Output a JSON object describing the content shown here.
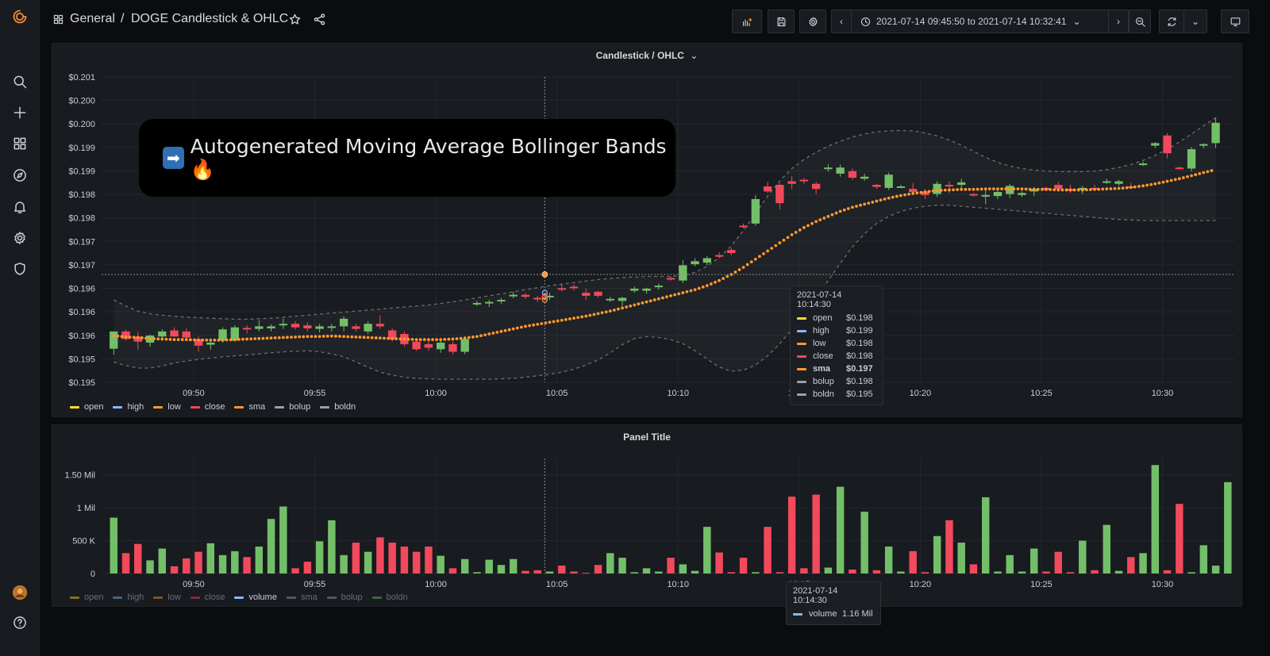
{
  "sidebar": {
    "items": [
      {
        "name": "grafana-logo-icon"
      },
      {
        "name": "search-icon"
      },
      {
        "name": "plus-icon"
      },
      {
        "name": "dashboards-icon"
      },
      {
        "name": "explore-compass-icon"
      },
      {
        "name": "alerting-bell-icon"
      },
      {
        "name": "configuration-gear-icon"
      },
      {
        "name": "server-admin-shield-icon"
      },
      {
        "name": "user-avatar-icon"
      },
      {
        "name": "help-icon"
      }
    ]
  },
  "header": {
    "folder": "General",
    "separator": "/",
    "dashboard_title": "DOGE Candlestick & OHLC",
    "time_range": "2021-07-14 09:45:50 to 2021-07-14 10:32:41"
  },
  "overlay": {
    "text": "Autogenerated Moving Average Bollinger Bands 🔥",
    "arrow": "➡"
  },
  "colors": {
    "up": "#73bf69",
    "down": "#f2495c",
    "sma": "#ff9830",
    "open": "#fade2a",
    "high": "#8ab8ff",
    "low": "#ff9830",
    "close": "#f2495c",
    "volume": "#8ab8ff",
    "bands": "#6e6e6e"
  },
  "panel1": {
    "title": "Candlestick / OHLC",
    "legend": [
      {
        "name": "open",
        "color": "#fade2a"
      },
      {
        "name": "high",
        "color": "#8ab8ff"
      },
      {
        "name": "low",
        "color": "#ff9830"
      },
      {
        "name": "close",
        "color": "#f2495c"
      },
      {
        "name": "sma",
        "color": "#ff9830"
      },
      {
        "name": "bolup",
        "color": "#9fa0a4"
      },
      {
        "name": "boldn",
        "color": "#9fa0a4"
      }
    ],
    "tooltip": {
      "time": "2021-07-14 10:14:30",
      "rows": [
        {
          "name": "open",
          "value": "$0.198",
          "color": "#fade2a",
          "bold": false
        },
        {
          "name": "high",
          "value": "$0.199",
          "color": "#8ab8ff",
          "bold": false
        },
        {
          "name": "low",
          "value": "$0.198",
          "color": "#ff9830",
          "bold": false
        },
        {
          "name": "close",
          "value": "$0.198",
          "color": "#f2495c",
          "bold": false
        },
        {
          "name": "sma",
          "value": "$0.197",
          "color": "#ff9830",
          "bold": true
        },
        {
          "name": "bolup",
          "value": "$0.198",
          "color": "#9fa0a4",
          "bold": false
        },
        {
          "name": "boldn",
          "value": "$0.195",
          "color": "#9fa0a4",
          "bold": false
        }
      ]
    }
  },
  "panel2": {
    "title": "Panel Title",
    "legend": [
      {
        "name": "open",
        "color": "#fade2a",
        "dim": true
      },
      {
        "name": "high",
        "color": "#8ab8ff",
        "dim": true
      },
      {
        "name": "low",
        "color": "#ff9830",
        "dim": true
      },
      {
        "name": "close",
        "color": "#f2495c",
        "dim": true
      },
      {
        "name": "volume",
        "color": "#8ab8ff",
        "dim": false
      },
      {
        "name": "sma",
        "color": "#9fa0a4",
        "dim": true
      },
      {
        "name": "bolup",
        "color": "#9fa0a4",
        "dim": true
      },
      {
        "name": "boldn",
        "color": "#73bf69",
        "dim": true
      }
    ],
    "tooltip": {
      "time": "2021-07-14 10:14:30",
      "rows": [
        {
          "name": "volume",
          "value": "1.16 Mil",
          "color": "#8ab8ff"
        }
      ]
    }
  },
  "chart_data": [
    {
      "type": "candlestick",
      "title": "Candlestick / OHLC",
      "y_tick_labels": [
        "$0.195",
        "$0.195",
        "$0.196",
        "$0.196",
        "$0.196",
        "$0.197",
        "$0.197",
        "$0.198",
        "$0.198",
        "$0.199",
        "$0.199",
        "$0.200",
        "$0.200",
        "$0.201"
      ],
      "x_tick_labels": [
        "09:50",
        "09:55",
        "10:00",
        "10:05",
        "10:10",
        "10:15",
        "10:20",
        "10:25",
        "10:30"
      ],
      "x_range_minutes": [
        -3.8,
        43.0
      ],
      "ylim": [
        0.195,
        0.201
      ],
      "candles": [
        [
          0.19566,
          0.196,
          0.19554,
          0.196
        ],
        [
          0.196,
          0.19604,
          0.19582,
          0.19585
        ],
        [
          0.1959,
          0.196,
          0.19564,
          0.1958
        ],
        [
          0.19578,
          0.19594,
          0.1957,
          0.19592
        ],
        [
          0.1959,
          0.19604,
          0.19586,
          0.196
        ],
        [
          0.19602,
          0.19608,
          0.1959,
          0.1959
        ],
        [
          0.196,
          0.19606,
          0.19584,
          0.19588
        ],
        [
          0.19585,
          0.1959,
          0.1956,
          0.19572
        ],
        [
          0.19574,
          0.1958,
          0.19564,
          0.19578
        ],
        [
          0.19582,
          0.19608,
          0.19578,
          0.19604
        ],
        [
          0.19582,
          0.19612,
          0.1958,
          0.19608
        ],
        [
          0.19607,
          0.19612,
          0.19596,
          0.19605
        ],
        [
          0.19605,
          0.19622,
          0.196,
          0.1961
        ],
        [
          0.19606,
          0.19614,
          0.196,
          0.1961
        ],
        [
          0.19612,
          0.19625,
          0.19605,
          0.19615
        ],
        [
          0.19615,
          0.1962,
          0.19604,
          0.19608
        ],
        [
          0.19612,
          0.19618,
          0.196,
          0.19606
        ],
        [
          0.19605,
          0.19615,
          0.19598,
          0.1961
        ],
        [
          0.19608,
          0.19615,
          0.196,
          0.1961
        ],
        [
          0.1961,
          0.1963,
          0.196,
          0.19625
        ],
        [
          0.1961,
          0.19615,
          0.196,
          0.19605
        ],
        [
          0.196,
          0.1962,
          0.19595,
          0.19615
        ],
        [
          0.19615,
          0.19632,
          0.19605,
          0.1961
        ],
        [
          0.19602,
          0.19606,
          0.1958,
          0.19584
        ],
        [
          0.19595,
          0.196,
          0.1957,
          0.19575
        ],
        [
          0.1958,
          0.19585,
          0.19562,
          0.19565
        ],
        [
          0.19575,
          0.19582,
          0.19562,
          0.19568
        ],
        [
          0.19565,
          0.19582,
          0.19558,
          0.19578
        ],
        [
          0.19575,
          0.1958,
          0.19555,
          0.1956
        ],
        [
          0.1956,
          0.1959,
          0.19555,
          0.19585
        ],
        [
          0.19655,
          0.1966,
          0.1965,
          0.19656
        ],
        [
          0.19656,
          0.19662,
          0.19648,
          0.19658
        ],
        [
          0.1966,
          0.19666,
          0.19654,
          0.19662
        ],
        [
          0.1967,
          0.19678,
          0.19665,
          0.19672
        ],
        [
          0.19672,
          0.19675,
          0.19664,
          0.19668
        ],
        [
          0.19666,
          0.1967,
          0.19658,
          0.19665
        ],
        [
          0.19668,
          0.19676,
          0.19662,
          0.1967
        ],
        [
          0.19685,
          0.19692,
          0.19678,
          0.19682
        ],
        [
          0.19688,
          0.19692,
          0.1968,
          0.19686
        ],
        [
          0.19676,
          0.19684,
          0.19662,
          0.1967
        ],
        [
          0.19678,
          0.1968,
          0.19666,
          0.1967
        ],
        [
          0.19662,
          0.19668,
          0.19658,
          0.19664
        ],
        [
          0.1966,
          0.19668,
          0.1965,
          0.19666
        ],
        [
          0.1968,
          0.19688,
          0.19676,
          0.19684
        ],
        [
          0.1968,
          0.19686,
          0.19674,
          0.19684
        ],
        [
          0.19688,
          0.19694,
          0.19682,
          0.1969
        ],
        [
          0.19705,
          0.19708,
          0.197,
          0.19704
        ],
        [
          0.197,
          0.1974,
          0.19695,
          0.1973
        ],
        [
          0.19732,
          0.19744,
          0.19728,
          0.19738
        ],
        [
          0.19735,
          0.19748,
          0.1973,
          0.19744
        ],
        [
          0.1975,
          0.19756,
          0.19744,
          0.19748
        ],
        [
          0.1976,
          0.19764,
          0.1975,
          0.19754
        ],
        [
          0.19808,
          0.19812,
          0.19802,
          0.19806
        ],
        [
          0.19812,
          0.19868,
          0.19808,
          0.1986
        ],
        [
          0.19885,
          0.19894,
          0.19872,
          0.19875
        ],
        [
          0.19888,
          0.19892,
          0.1984,
          0.19852
        ],
        [
          0.19895,
          0.19905,
          0.1988,
          0.1989
        ],
        [
          0.19898,
          0.19902,
          0.1989,
          0.19895
        ],
        [
          0.1989,
          0.19894,
          0.1987,
          0.1988
        ],
        [
          0.1992,
          0.19928,
          0.19914,
          0.19922
        ],
        [
          0.1991,
          0.19928,
          0.19904,
          0.19922
        ],
        [
          0.19915,
          0.1992,
          0.19898,
          0.19902
        ],
        [
          0.199,
          0.1991,
          0.19896,
          0.19904
        ],
        [
          0.19888,
          0.1989,
          0.1988,
          0.19884
        ],
        [
          0.19882,
          0.19912,
          0.19878,
          0.19908
        ],
        [
          0.19885,
          0.19888,
          0.19882,
          0.19885
        ],
        [
          0.1988,
          0.19892,
          0.19872,
          0.19874
        ],
        [
          0.19875,
          0.1988,
          0.1986,
          0.19868
        ],
        [
          0.1987,
          0.19895,
          0.19864,
          0.1989
        ],
        [
          0.19888,
          0.19895,
          0.19872,
          0.19885
        ],
        [
          0.19888,
          0.199,
          0.19882,
          0.19893
        ],
        [
          0.1987,
          0.19872,
          0.19865,
          0.19868
        ],
        [
          0.19868,
          0.19882,
          0.1985,
          0.19868
        ],
        [
          0.19866,
          0.19878,
          0.1986,
          0.19874
        ],
        [
          0.1987,
          0.1989,
          0.19862,
          0.19886
        ],
        [
          0.19868,
          0.19876,
          0.19864,
          0.19872
        ],
        [
          0.19875,
          0.19884,
          0.19866,
          0.1988
        ],
        [
          0.19882,
          0.19884,
          0.19876,
          0.19878
        ],
        [
          0.19888,
          0.19894,
          0.19876,
          0.1988
        ],
        [
          0.1988,
          0.19888,
          0.19872,
          0.19876
        ],
        [
          0.19878,
          0.19886,
          0.1987,
          0.19882
        ],
        [
          0.19882,
          0.19888,
          0.19876,
          0.1988
        ],
        [
          0.19895,
          0.199,
          0.1989,
          0.19895
        ],
        [
          0.1989,
          0.19898,
          0.19886,
          0.19895
        ],
        [
          0.19885,
          0.19892,
          0.1988,
          0.19884
        ],
        [
          0.1993,
          0.19934,
          0.19925,
          0.1993
        ],
        [
          0.19965,
          0.19972,
          0.1996,
          0.1997
        ],
        [
          0.19985,
          0.1999,
          0.1994,
          0.1995
        ],
        [
          0.19922,
          0.19924,
          0.19918,
          0.19921
        ],
        [
          0.1992,
          0.19962,
          0.19914,
          0.19958
        ],
        [
          0.19965,
          0.1997,
          0.1996,
          0.19968
        ],
        [
          0.1997,
          0.2002,
          0.1996,
          0.2001
        ]
      ],
      "sma": [
        0.19592,
        0.19589,
        0.19588,
        0.19586,
        0.19585,
        0.19584,
        0.19584,
        0.19583,
        0.19583,
        0.19583,
        0.19584,
        0.19585,
        0.19586,
        0.19587,
        0.19588,
        0.19589,
        0.1959,
        0.1959,
        0.19591,
        0.1959,
        0.19589,
        0.19588,
        0.19587,
        0.19586,
        0.19585,
        0.19584,
        0.19584,
        0.19584,
        0.19585,
        0.19587,
        0.1959,
        0.19595,
        0.196,
        0.19605,
        0.1961,
        0.19614,
        0.19618,
        0.19622,
        0.19626,
        0.1963,
        0.19635,
        0.1964,
        0.19646,
        0.19652,
        0.19658,
        0.19664,
        0.1967,
        0.19676,
        0.19682,
        0.1969,
        0.197,
        0.19712,
        0.19726,
        0.19742,
        0.19758,
        0.19774,
        0.1979,
        0.19804,
        0.19816,
        0.19826,
        0.19836,
        0.19844,
        0.1985,
        0.19856,
        0.19862,
        0.19867,
        0.19871,
        0.19874,
        0.19877,
        0.19878,
        0.19879,
        0.19879,
        0.1988,
        0.1988,
        0.1988,
        0.1988,
        0.19879,
        0.19879,
        0.19878,
        0.19878,
        0.19878,
        0.19879,
        0.1988,
        0.19881,
        0.19883,
        0.19886,
        0.1989,
        0.19895,
        0.199,
        0.19906,
        0.19912,
        0.19918
      ],
      "bolup": [
        0.19662,
        0.1965,
        0.1964,
        0.19635,
        0.19632,
        0.1963,
        0.19628,
        0.19627,
        0.19626,
        0.19625,
        0.19624,
        0.19624,
        0.19625,
        0.19626,
        0.19628,
        0.1963,
        0.19632,
        0.19634,
        0.19636,
        0.19638,
        0.1964,
        0.19642,
        0.19644,
        0.19646,
        0.19648,
        0.1965,
        0.19652,
        0.19655,
        0.19658,
        0.19662,
        0.19666,
        0.1967,
        0.19674,
        0.19678,
        0.19682,
        0.19686,
        0.1969,
        0.19693,
        0.19696,
        0.19699,
        0.19702,
        0.19704,
        0.19706,
        0.19707,
        0.19708,
        0.19708,
        0.19708,
        0.1971,
        0.19716,
        0.19728,
        0.19745,
        0.19768,
        0.19798,
        0.19832,
        0.19866,
        0.19896,
        0.1992,
        0.19938,
        0.19952,
        0.19964,
        0.19974,
        0.19982,
        0.19988,
        0.19992,
        0.19994,
        0.19995,
        0.19994,
        0.1999,
        0.19984,
        0.19976,
        0.19966,
        0.19954,
        0.19942,
        0.19932,
        0.19925,
        0.1992,
        0.19917,
        0.19915,
        0.19914,
        0.19914,
        0.19914,
        0.19915,
        0.19918,
        0.19922,
        0.19928,
        0.19936,
        0.19946,
        0.19958,
        0.19972,
        0.19988,
        0.20004,
        0.2002
      ],
      "boldn": [
        0.1954,
        0.19533,
        0.19528,
        0.19528,
        0.19532,
        0.19538,
        0.19542,
        0.19545,
        0.19548,
        0.1955,
        0.19552,
        0.19554,
        0.19556,
        0.19558,
        0.1956,
        0.19561,
        0.19562,
        0.1956,
        0.19556,
        0.1955,
        0.1954,
        0.1953,
        0.1952,
        0.19514,
        0.1951,
        0.19508,
        0.19507,
        0.19506,
        0.19506,
        0.19506,
        0.19506,
        0.19506,
        0.19507,
        0.19508,
        0.1951,
        0.19513,
        0.19516,
        0.1952,
        0.19526,
        0.19534,
        0.19544,
        0.19558,
        0.19574,
        0.19586,
        0.1959,
        0.19588,
        0.19584,
        0.19576,
        0.19562,
        0.19546,
        0.1953,
        0.19522,
        0.19524,
        0.19534,
        0.19552,
        0.19576,
        0.19604,
        0.19634,
        0.19666,
        0.197,
        0.19734,
        0.19766,
        0.19792,
        0.19812,
        0.19826,
        0.19836,
        0.19842,
        0.19846,
        0.19848,
        0.19848,
        0.19846,
        0.19844,
        0.19842,
        0.1984,
        0.19838,
        0.19836,
        0.19834,
        0.19832,
        0.1983,
        0.19828,
        0.19826,
        0.19824,
        0.19822,
        0.1982,
        0.19819,
        0.19818,
        0.19818,
        0.19818,
        0.19818,
        0.19818,
        0.19818,
        0.19818
      ]
    },
    {
      "type": "bar",
      "title": "Panel Title",
      "y_tick_labels": [
        "0",
        "500 K",
        "1 Mil",
        "1.50 Mil"
      ],
      "x_tick_labels": [
        "09:50",
        "09:55",
        "10:00",
        "10:05",
        "10:10",
        "10:15",
        "10:20",
        "10:25",
        "10:30"
      ],
      "ylim": [
        0,
        1750000
      ],
      "volumes": [
        850000,
        310000,
        450000,
        200000,
        380000,
        110000,
        230000,
        330000,
        460000,
        280000,
        340000,
        250000,
        410000,
        830000,
        1020000,
        80000,
        180000,
        490000,
        810000,
        280000,
        470000,
        330000,
        550000,
        470000,
        410000,
        330000,
        410000,
        270000,
        80000,
        220000,
        20000,
        210000,
        130000,
        220000,
        40000,
        50000,
        30000,
        120000,
        30000,
        10000,
        130000,
        310000,
        240000,
        20000,
        80000,
        30000,
        240000,
        140000,
        40000,
        710000,
        320000,
        20000,
        240000,
        20000,
        710000,
        20000,
        1170000,
        80000,
        1200000,
        90000,
        1320000,
        60000,
        940000,
        50000,
        410000,
        30000,
        340000,
        20000,
        570000,
        810000,
        470000,
        140000,
        1160000,
        30000,
        280000,
        30000,
        380000,
        30000,
        330000,
        20000,
        500000,
        50000,
        740000,
        40000,
        250000,
        310000,
        1650000,
        50000,
        1060000,
        20000,
        430000,
        120000,
        1390000
      ]
    }
  ]
}
